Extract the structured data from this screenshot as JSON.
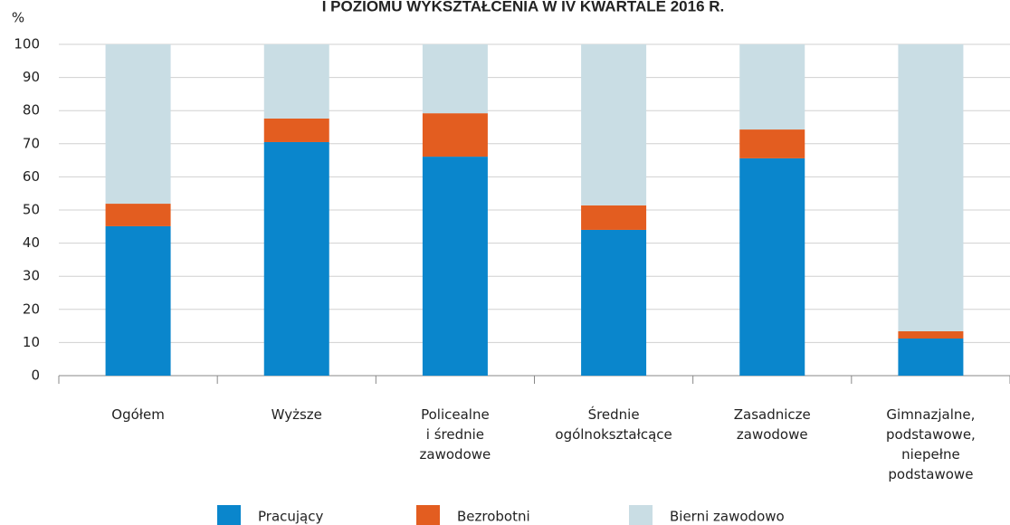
{
  "chart_data": {
    "type": "stacked_bar",
    "title": "I POZIOMU WYKSZTAŁCENIA W IV KWARTALE 2016 R.",
    "y_label": "%",
    "categories": [
      [
        "Ogółem"
      ],
      [
        "Wyższe"
      ],
      [
        "Policealne",
        "i średnie",
        "zawodowe"
      ],
      [
        "Średnie",
        "ogólnokształcące"
      ],
      [
        "Zasadnicze",
        "zawodowe"
      ],
      [
        "Gimnazjalne,",
        "podstawowe,",
        "niepełne",
        "podstawowe"
      ]
    ],
    "series": [
      {
        "name": "Pracujący",
        "color": "#0a86cc",
        "values": [
          45.1,
          70.5,
          66.1,
          44.0,
          65.6,
          11.2
        ]
      },
      {
        "name": "Bezrobotni",
        "color": "#e35d20",
        "values": [
          6.8,
          7.1,
          13.1,
          7.4,
          8.7,
          2.2
        ]
      },
      {
        "name": "Bierni zawodowo",
        "color": "#c9dde4",
        "values": [
          48.1,
          22.4,
          20.8,
          48.6,
          25.7,
          86.6
        ]
      }
    ],
    "ylim": [
      0,
      100
    ],
    "yticks": [
      0,
      10,
      20,
      30,
      40,
      50,
      60,
      70,
      80,
      90,
      100
    ],
    "grid": true
  }
}
